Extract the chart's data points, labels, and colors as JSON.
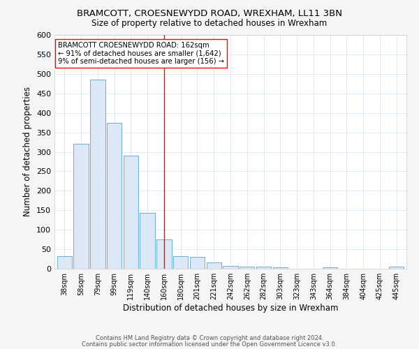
{
  "title": "BRAMCOTT, CROESNEWYDD ROAD, WREXHAM, LL11 3BN",
  "subtitle": "Size of property relative to detached houses in Wrexham",
  "xlabel": "Distribution of detached houses by size in Wrexham",
  "ylabel": "Number of detached properties",
  "bar_labels": [
    "38sqm",
    "58sqm",
    "79sqm",
    "99sqm",
    "119sqm",
    "140sqm",
    "160sqm",
    "180sqm",
    "201sqm",
    "221sqm",
    "242sqm",
    "262sqm",
    "282sqm",
    "303sqm",
    "323sqm",
    "343sqm",
    "364sqm",
    "384sqm",
    "404sqm",
    "425sqm",
    "445sqm"
  ],
  "bar_values": [
    33,
    320,
    485,
    375,
    290,
    143,
    75,
    33,
    30,
    17,
    8,
    5,
    5,
    4,
    0,
    0,
    4,
    0,
    0,
    0,
    5
  ],
  "bar_color": "#dce8f5",
  "bar_edge_color": "#6aaed6",
  "red_line_index": 6,
  "ylim": [
    0,
    600
  ],
  "yticks": [
    0,
    50,
    100,
    150,
    200,
    250,
    300,
    350,
    400,
    450,
    500,
    550,
    600
  ],
  "annotation_line1": "BRAMCOTT CROESNEWYDD ROAD: 162sqm",
  "annotation_line2": "← 91% of detached houses are smaller (1,642)",
  "annotation_line3": "9% of semi-detached houses are larger (156) →",
  "footnote1": "Contains HM Land Registry data © Crown copyright and database right 2024.",
  "footnote2": "Contains public sector information licensed under the Open Government Licence v3.0.",
  "fig_facecolor": "#f5f5f5",
  "plot_facecolor": "#ffffff",
  "grid_color": "#d8e4f0"
}
